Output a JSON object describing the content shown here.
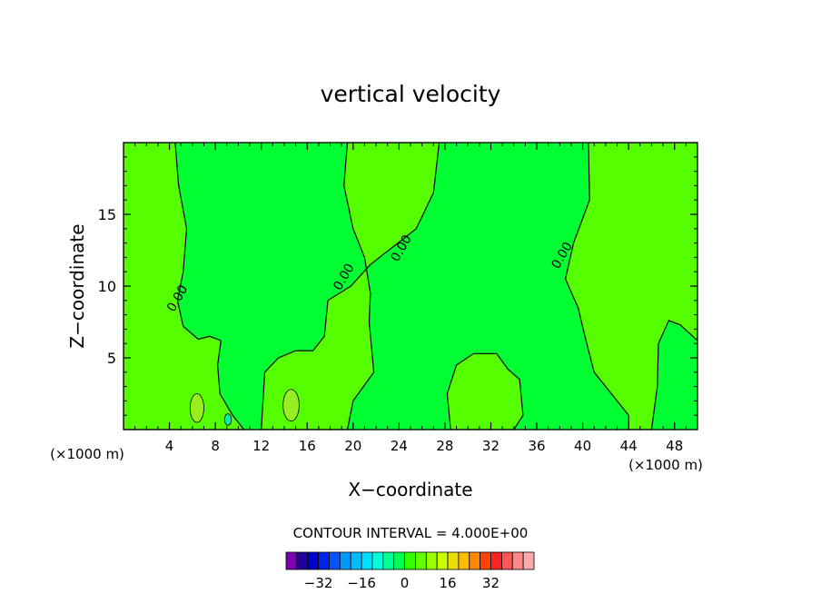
{
  "chart_data": {
    "type": "heatmap",
    "title": "vertical velocity",
    "xlabel": "X−coordinate",
    "ylabel": "Z−coordinate",
    "x_unit_left": "(×1000 m)",
    "x_unit_right": "(×1000 m)",
    "xlim": [
      0,
      50
    ],
    "ylim": [
      0,
      20
    ],
    "x_ticks": [
      4,
      8,
      12,
      16,
      20,
      24,
      28,
      32,
      36,
      40,
      44,
      48
    ],
    "x_tick_labels": [
      "4",
      "8",
      "12",
      "16",
      "20",
      "24",
      "28",
      "32",
      "36",
      "40",
      "44",
      "48"
    ],
    "y_ticks": [
      5,
      10,
      15
    ],
    "y_tick_labels": [
      "5",
      "10",
      "15"
    ],
    "contour_interval_text": "CONTOUR INTERVAL = 4.000E+00",
    "contour_interval": 4,
    "contour_labels": [
      {
        "text": "0.00",
        "x": 5.0,
        "y": 9.0
      },
      {
        "text": "0.00",
        "x": 19.5,
        "y": 10.5
      },
      {
        "text": "0.00",
        "x": 24.5,
        "y": 12.5
      },
      {
        "text": "0.00",
        "x": 38.5,
        "y": 12.0
      }
    ],
    "background_color": "#00ff33",
    "region_colors": {
      "near_zero_positive": "#55ff00",
      "weak_positive": "#99ee22",
      "weak_negative": "#00eeaa"
    },
    "positive_regions": [
      {
        "name": "left-band",
        "poly": [
          [
            0,
            20
          ],
          [
            4.5,
            20
          ],
          [
            4.8,
            17
          ],
          [
            5.5,
            14
          ],
          [
            5.2,
            11
          ],
          [
            4.7,
            9
          ],
          [
            5.2,
            7.2
          ],
          [
            6.5,
            6.3
          ],
          [
            7.5,
            6.5
          ],
          [
            8.5,
            6.2
          ],
          [
            8.2,
            4.5
          ],
          [
            8.4,
            2.5
          ],
          [
            9.5,
            1
          ],
          [
            10.5,
            0
          ],
          [
            0,
            0
          ]
        ]
      },
      {
        "name": "center-left-band",
        "poly": [
          [
            12,
            0
          ],
          [
            12.3,
            4
          ],
          [
            13.5,
            5
          ],
          [
            15,
            5.5
          ],
          [
            16.5,
            5.5
          ],
          [
            17.5,
            6.5
          ],
          [
            17.8,
            9
          ],
          [
            19.8,
            10
          ],
          [
            21.5,
            11.5
          ],
          [
            25.5,
            14
          ],
          [
            27,
            16.5
          ],
          [
            27.5,
            20
          ],
          [
            19.5,
            20
          ],
          [
            19.2,
            17
          ],
          [
            20,
            14
          ],
          [
            21,
            12
          ],
          [
            21.5,
            9.5
          ],
          [
            21.4,
            7.5
          ],
          [
            21.8,
            4
          ],
          [
            20,
            2
          ],
          [
            19.5,
            0
          ]
        ]
      },
      {
        "name": "center-blob",
        "poly": [
          [
            28.5,
            0
          ],
          [
            28.2,
            2.5
          ],
          [
            29,
            4.5
          ],
          [
            30.5,
            5.3
          ],
          [
            32.5,
            5.3
          ],
          [
            33.5,
            4.2
          ],
          [
            34.5,
            3.5
          ],
          [
            34.8,
            1
          ],
          [
            34,
            0
          ]
        ]
      },
      {
        "name": "right-band",
        "poly": [
          [
            40.5,
            20
          ],
          [
            40.6,
            16
          ],
          [
            39.2,
            13
          ],
          [
            38.5,
            10.5
          ],
          [
            39.6,
            8.5
          ],
          [
            40.2,
            6.5
          ],
          [
            41,
            4
          ],
          [
            42.5,
            2.5
          ],
          [
            44,
            1
          ],
          [
            44,
            0
          ],
          [
            46,
            0
          ],
          [
            46.5,
            3
          ],
          [
            46.6,
            6
          ],
          [
            47.5,
            7.6
          ],
          [
            48.5,
            7.3
          ],
          [
            50,
            6.2
          ],
          [
            50,
            20
          ]
        ]
      }
    ],
    "weak_regions": [
      {
        "name": "blob-6",
        "cx": 6.4,
        "cy": 1.5,
        "rx": 0.6,
        "ry": 1.0,
        "color": "#99ee22"
      },
      {
        "name": "blob-14",
        "cx": 14.6,
        "cy": 1.7,
        "rx": 0.7,
        "ry": 1.1,
        "color": "#99ee22"
      },
      {
        "name": "blob-9",
        "cx": 9.1,
        "cy": 0.7,
        "rx": 0.3,
        "ry": 0.4,
        "color": "#00eeaa"
      }
    ],
    "colorbar": {
      "colors": [
        "#7a00b0",
        "#2200a0",
        "#0000cc",
        "#0022ee",
        "#0055ff",
        "#0099ff",
        "#00bbff",
        "#00ddff",
        "#00ffdd",
        "#00ff99",
        "#00ff55",
        "#33ff00",
        "#66ff00",
        "#99ff00",
        "#ccff00",
        "#eedd00",
        "#ffbb00",
        "#ff8800",
        "#ff4400",
        "#ff2222",
        "#ff5555",
        "#ff8888",
        "#ffaaaa"
      ],
      "tick_labels": [
        "−32",
        "−16",
        "0",
        "16",
        "32"
      ],
      "tick_values": [
        -32,
        -16,
        0,
        16,
        32
      ]
    }
  }
}
